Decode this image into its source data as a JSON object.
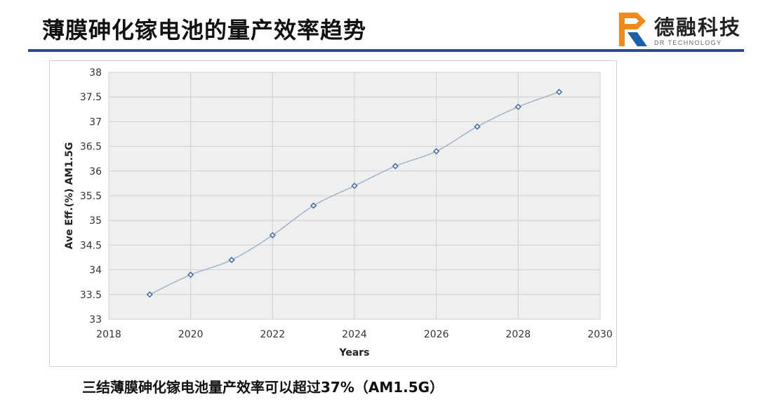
{
  "header": {
    "title": "薄膜砷化镓电池的量产效率趋势"
  },
  "logo": {
    "name_cn": "德融科技",
    "name_en": "DR TECHNOLOGY",
    "colors": {
      "orange": "#f08a1c",
      "blue": "#1c5fa8"
    }
  },
  "chart_data": {
    "type": "scatter",
    "xlabel": "Years",
    "ylabel": "Ave Eff.(%) AM1.5G",
    "xlim": [
      2018,
      2030
    ],
    "ylim": [
      33,
      38
    ],
    "xticks": [
      2018,
      2020,
      2022,
      2024,
      2026,
      2028,
      2030
    ],
    "yticks": [
      33,
      33.5,
      34,
      34.5,
      35,
      35.5,
      36,
      36.5,
      37,
      37.5,
      38
    ],
    "grid": true,
    "series": [
      {
        "name": "Ave Eff.",
        "x": [
          2019,
          2020,
          2021,
          2022,
          2023,
          2024,
          2025,
          2026,
          2027,
          2028,
          2029
        ],
        "y": [
          33.5,
          33.9,
          34.2,
          34.7,
          35.3,
          35.7,
          36.1,
          36.4,
          36.9,
          37.3,
          37.6
        ],
        "line_color": "#9fb3c8",
        "marker_color": "#4a6fa5"
      }
    ]
  },
  "caption": "三结薄膜砷化镓电池量产效率可以超过37%（AM1.5G）"
}
